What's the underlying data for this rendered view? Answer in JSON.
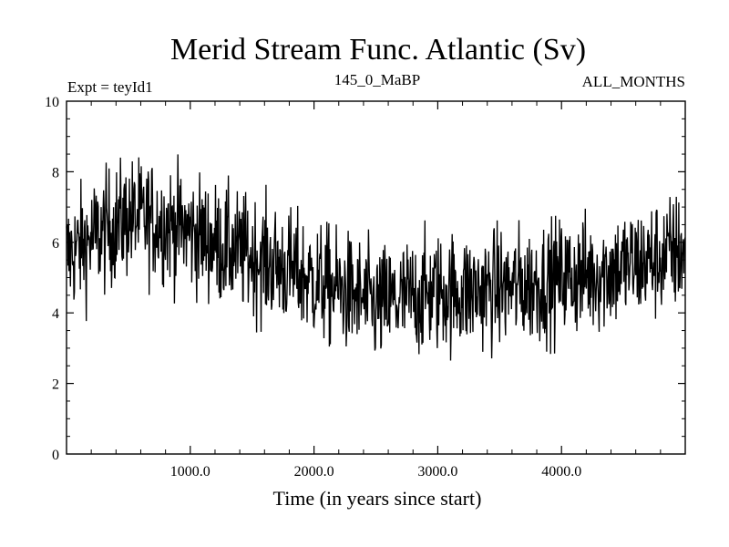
{
  "chart_data": {
    "type": "line",
    "title": "Merid Stream Func. Atlantic (Sv)",
    "left_label": "Expt = teyId1",
    "center_label": "145_0_MaBP",
    "right_label": "ALL_MONTHS",
    "xlabel": "Time (in years since start)",
    "ylabel": "",
    "xlim": [
      0,
      5000
    ],
    "ylim": [
      0,
      10
    ],
    "x_ticks": [
      1000,
      2000,
      3000,
      4000
    ],
    "x_tick_labels": [
      "1000.0",
      "2000.0",
      "3000.0",
      "4000.0"
    ],
    "y_ticks": [
      0,
      2,
      4,
      6,
      8,
      10
    ],
    "y_tick_labels": [
      "0",
      "2",
      "4",
      "6",
      "8",
      "10"
    ],
    "grid": false,
    "series": [
      {
        "x": [
          0,
          250,
          500,
          750,
          1000,
          1250,
          1500,
          1750,
          2000,
          2250,
          2500,
          2750,
          3000,
          3250,
          3500,
          3750,
          4000,
          4250,
          4500,
          4750,
          5000
        ],
        "values": [
          5.6,
          6.2,
          6.7,
          6.6,
          6.3,
          5.9,
          5.6,
          5.3,
          4.9,
          4.6,
          4.2,
          4.4,
          4.6,
          4.6,
          4.7,
          4.8,
          5.0,
          5.1,
          5.3,
          5.5,
          5.8
        ],
        "color": "#000000"
      }
    ]
  }
}
